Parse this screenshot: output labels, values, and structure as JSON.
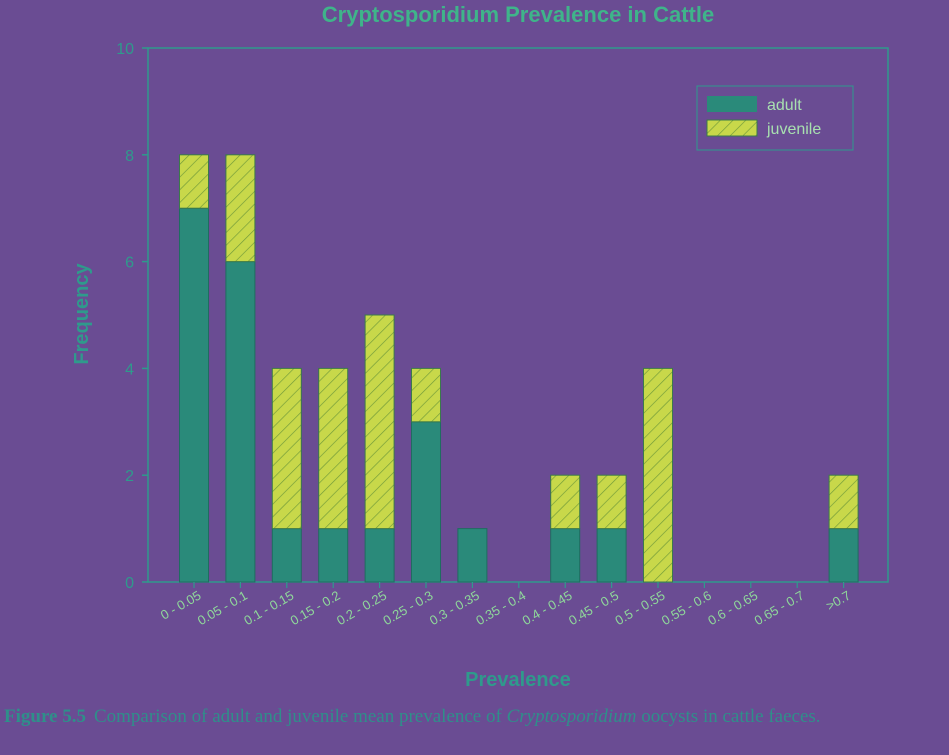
{
  "colors": {
    "background": "#6a4c93",
    "axis": "#2f9a8c",
    "adult": "#2a8a7a",
    "juvenile": "#c8d84a",
    "title": "#3fb48a",
    "caption": "#2f8f8a"
  },
  "chart_data": {
    "type": "bar",
    "stacked": true,
    "title": "Cryptosporidium Prevalence in Cattle",
    "xlabel": "Prevalence",
    "ylabel": "Frequency",
    "ylim": [
      0,
      10
    ],
    "yticks": [
      0,
      2,
      4,
      6,
      8,
      10
    ],
    "categories": [
      "0 - 0.05",
      "0.05 - 0.1",
      "0.1 - 0.15",
      "0.15 - 0.2",
      "0.2 - 0.25",
      "0.25 - 0.3",
      "0.3 - 0.35",
      "0.35 - 0.4",
      "0.4 - 0.45",
      "0.45 - 0.5",
      "0.5 - 0.55",
      "0.55 - 0.6",
      "0.6 - 0.65",
      "0.65 - 0.7",
      ">0.7"
    ],
    "series": [
      {
        "name": "adult",
        "values": [
          7,
          6,
          1,
          1,
          1,
          3,
          1,
          0,
          1,
          1,
          0,
          0,
          0,
          0,
          1
        ],
        "pattern": "solid"
      },
      {
        "name": "juvenile",
        "values": [
          1,
          2,
          3,
          3,
          4,
          1,
          0,
          0,
          1,
          1,
          4,
          0,
          0,
          0,
          1
        ],
        "pattern": "hatched"
      }
    ],
    "legend_position": "top-right",
    "grid": false
  },
  "caption": {
    "label": "Figure 5.5",
    "text_before": "Comparison of adult and juvenile mean prevalence of ",
    "italic": "Cryptosporidium",
    "text_after": " oocysts in cattle faeces."
  }
}
